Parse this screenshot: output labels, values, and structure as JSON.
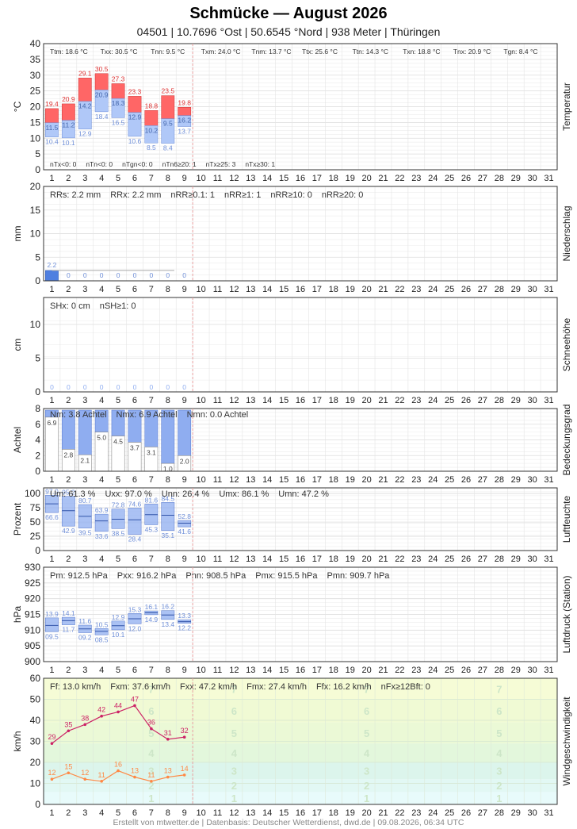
{
  "header": {
    "title": "Schmücke  —  August 2026",
    "subtitle": "04501  |  10.7696 °Ost  |  50.6545 °Nord  |  938 Meter  |  Thüringen"
  },
  "footer": "Erstellt von mtwetter.de | Datenbasis: Deutscher Wetterdienst, dwd.de | 09.08.2026, 06:34 UTC",
  "colors": {
    "tmax_bar": "#ff6666",
    "tmin_bar": "#b0c8f8",
    "precip_bar": "#4f7fe0",
    "cloud_bar": "#8fadf0",
    "humidity_bar": "#8fadf0",
    "pressure_bar": "#8fadf0",
    "gust_line": "#cc2266",
    "wind_line": "#ff8844",
    "today_line": "#e8a0a0"
  },
  "chart_data": [
    {
      "type": "bar",
      "name": "temperature",
      "ylabel": "°C",
      "side_label": "Temperatur",
      "ylim": [
        0,
        40
      ],
      "yticks": [
        0,
        5,
        10,
        15,
        20,
        25,
        30,
        35,
        40
      ],
      "days": [
        1,
        2,
        3,
        4,
        5,
        6,
        7,
        8,
        9,
        10,
        11,
        12,
        13,
        14,
        15,
        16,
        17,
        18,
        19,
        20,
        21,
        22,
        23,
        24,
        25,
        26,
        27,
        28,
        29,
        30,
        31
      ],
      "tmax": [
        19.4,
        20.9,
        29.1,
        30.5,
        27.3,
        23.3,
        18.8,
        23.5,
        19.8
      ],
      "tmean": [
        14.9,
        15.7,
        21.7,
        25.3,
        22.6,
        18.2,
        14.0,
        16.2,
        17.2
      ],
      "tmean_labels": [
        "11.5",
        "11.2",
        "14.2",
        "20.9",
        "18.3",
        "12.9",
        "10.2",
        "9.5",
        "16.2"
      ],
      "tmin": [
        10.4,
        10.1,
        12.9,
        18.4,
        16.5,
        10.6,
        8.5,
        8.4,
        13.7
      ],
      "stats_top": [
        "Ttm: 18.6 °C",
        "Txx: 30.5 °C",
        "Tnn: 9.5 °C",
        "Txm: 24.0 °C",
        "Tnm: 13.7 °C",
        "Ttx: 25.6 °C",
        "Ttn: 14.3 °C",
        "Txn: 18.8 °C",
        "Tnx: 20.9 °C",
        "Tgn: 8.4 °C"
      ],
      "stats_bottom": [
        "nTx<0: 0",
        "nTn<0: 0",
        "nTgn<0: 0",
        "nTn6≥20: 1",
        "nTx≥25: 3",
        "nTx≥30: 1"
      ]
    },
    {
      "type": "bar",
      "name": "precipitation",
      "ylabel": "mm",
      "side_label": "Niederschlag",
      "ylim": [
        0,
        20
      ],
      "yticks": [
        0,
        5,
        10,
        15,
        20
      ],
      "values": [
        2.2,
        0,
        0,
        0,
        0,
        0,
        0,
        0,
        0
      ],
      "labels": [
        "2.2",
        "0",
        "0",
        "0",
        "0",
        "0",
        "0",
        "0",
        "0"
      ],
      "stats": [
        "RRs: 2.2 mm",
        "RRx: 2.2 mm",
        "nRR≥0.1: 1",
        "nRR≥1: 1",
        "nRR≥10: 0",
        "nRR≥20: 0"
      ]
    },
    {
      "type": "bar",
      "name": "snow",
      "ylabel": "cm",
      "side_label": "Schneehöhe",
      "ylim": [
        0,
        14
      ],
      "yticks": [
        0,
        5,
        10
      ],
      "values": [
        0,
        0,
        0,
        0,
        0,
        0,
        0,
        0,
        0
      ],
      "labels": [
        "0",
        "0",
        "0",
        "0",
        "0",
        "0",
        "0",
        "0",
        "0"
      ],
      "stats": [
        "SHx: 0 cm",
        "nSH≥1: 0"
      ]
    },
    {
      "type": "bar",
      "name": "cloud_cover",
      "ylabel": "Achtel",
      "side_label": "Bedeckungsgrad",
      "ylim": [
        0,
        8
      ],
      "yticks": [
        0,
        2,
        4,
        6,
        8
      ],
      "values": [
        6.9,
        2.8,
        2.1,
        5.0,
        4.5,
        3.7,
        3.1,
        1.0,
        2.0
      ],
      "labels": [
        "6.9",
        "2.8",
        "2.1",
        "5.0",
        "4.5",
        "3.7",
        "3.1",
        "1.0",
        "2.0"
      ],
      "stats": [
        "Nm: 3.8 Achtel",
        "Nmx: 6.9 Achtel",
        "Nmn: 0.0 Achtel"
      ]
    },
    {
      "type": "bar",
      "name": "humidity",
      "ylabel": "Prozent",
      "side_label": "Luftfeuchte",
      "ylim": [
        0,
        110
      ],
      "yticks": [
        0,
        25,
        50,
        75,
        100
      ],
      "max": [
        97.0,
        95.2,
        80.7,
        63.9,
        72.8,
        74.6,
        81.6,
        84.5,
        52.8
      ],
      "max_labels": [
        "97.0",
        "95.2",
        "80.7",
        "63.9",
        "72.8",
        "74.6",
        "81.6",
        "84.5",
        "52.8"
      ],
      "mean": [
        82.0,
        70.0,
        60.0,
        52.0,
        55.0,
        54.0,
        63.0,
        62.0,
        48.0
      ],
      "min": [
        66.6,
        42.9,
        39.5,
        33.6,
        38.5,
        28.4,
        45.3,
        35.1,
        41.6
      ],
      "min_labels": [
        "66.6",
        "42.9",
        "39.5",
        "33.6",
        "38.5",
        "28.4",
        "45.3",
        "35.1",
        "41.6"
      ],
      "stats": [
        "Um: 61.3 %",
        "Uxx: 97.0 %",
        "Unn: 26.4 %",
        "Umx: 86.1 %",
        "Umn: 47.2 %"
      ]
    },
    {
      "type": "bar",
      "name": "pressure",
      "ylabel": "hPa",
      "side_label": "Luftdruck (Station)",
      "ylim": [
        900,
        930
      ],
      "yticks": [
        900,
        905,
        910,
        915,
        920,
        925,
        930
      ],
      "max": [
        913.9,
        914.1,
        911.6,
        910.5,
        912.9,
        915.3,
        916.1,
        916.2,
        913.3
      ],
      "max_labels": [
        "13.9",
        "14.1",
        "11.6",
        "10.5",
        "12.9",
        "15.3",
        "16.1",
        "16.2",
        "13.3"
      ],
      "mean": [
        911.5,
        913.0,
        910.4,
        909.6,
        911.4,
        913.6,
        915.5,
        914.8,
        912.7
      ],
      "min": [
        909.5,
        911.7,
        909.2,
        908.5,
        910.1,
        912.0,
        914.9,
        913.4,
        912.2
      ],
      "min_labels": [
        "09.5",
        "11.7",
        "09.2",
        "08.5",
        "10.1",
        "12.0",
        "14.9",
        "13.4",
        "12.2"
      ],
      "stats": [
        "Pm: 912.5 hPa",
        "Pxx: 916.2 hPa",
        "Pnn: 908.5 hPa",
        "Pmx: 915.5 hPa",
        "Pmn: 909.7 hPa"
      ]
    },
    {
      "type": "line",
      "name": "wind",
      "ylabel": "km/h",
      "side_label": "Windgeschwindigkeit",
      "ylim": [
        0,
        60
      ],
      "yticks": [
        0,
        10,
        20,
        30,
        40,
        50,
        60
      ],
      "series": [
        {
          "key": "gust",
          "values": [
            29,
            35,
            38,
            42,
            44,
            47,
            36,
            31,
            32
          ]
        },
        {
          "key": "wind",
          "values": [
            12,
            15,
            12,
            11,
            16,
            13,
            11,
            13,
            14
          ]
        }
      ],
      "beaufort_labels": [
        "1",
        "2",
        "3",
        "4",
        "5",
        "6",
        "7"
      ],
      "stats": [
        "Ff: 13.0 km/h",
        "Fxm: 37.6 km/h",
        "Fxx: 47.2 km/h",
        "Fmx: 27.4 km/h",
        "Ffx: 16.2 km/h",
        "nFx≥12Bft: 0"
      ]
    }
  ]
}
